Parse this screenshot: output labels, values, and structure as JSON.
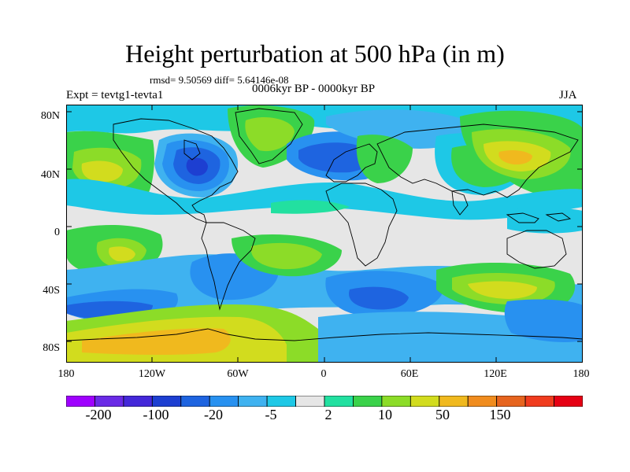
{
  "title": "Height perturbation at 500 hPa (in m)",
  "stats_line": "rmsd= 9.50569 diff= 5.64146e-08",
  "period_line": "0006kyr BP - 0000kyr BP",
  "experiment_line": "Expt = tevtg1-tevta1",
  "season": "JJA",
  "axes": {
    "y_labels": [
      "80N",
      "40N",
      "0",
      "40S",
      "80S"
    ],
    "x_labels": [
      "180",
      "120W",
      "60W",
      "0",
      "60E",
      "120E",
      "180"
    ]
  },
  "colorbar": {
    "colors": [
      "#9f00ff",
      "#6a2ae6",
      "#4428d9",
      "#1d3fd1",
      "#1e64e0",
      "#2891f0",
      "#3fb2f0",
      "#1ec8e6",
      "#e6e6e6",
      "#22e0a0",
      "#3ad24a",
      "#8cdc28",
      "#d2dc1e",
      "#f0b91e",
      "#f08c1e",
      "#e6641e",
      "#f03c1e",
      "#e60014"
    ],
    "labels": [
      "-200",
      "-100",
      "-20",
      "-5",
      "2",
      "10",
      "50",
      "150"
    ]
  },
  "palette": {
    "neutral": "#e6e6e6",
    "cyan_light": "#1ec8e6",
    "cyan": "#3fb2f0",
    "blue_light": "#2891f0",
    "blue": "#1e64e0",
    "blue_dark": "#1d3fd1",
    "mint": "#22e0a0",
    "green": "#3ad24a",
    "yellow_green": "#8cdc28",
    "yellow": "#d2dc1e",
    "orange_yellow": "#f0b91e",
    "coast": "#000000"
  }
}
